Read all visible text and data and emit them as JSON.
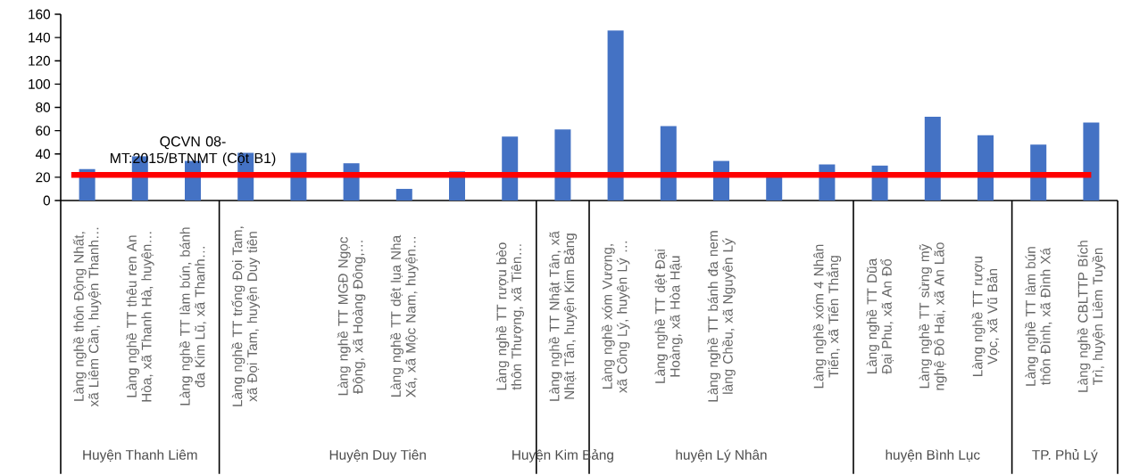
{
  "chart_data": {
    "type": "bar",
    "categories": [
      "Làng nghề thôn Động Nhất, xã Liêm Cần, huyện Thanh…",
      "Làng nghề TT thêu ren An Hòa, xã Thanh Hà, huyện…",
      "Làng nghề TT làm bún, bánh đa Kim Lũ, xã Thanh…",
      "Làng nghề TT trống Đọi Tam, xã Đọi Tam, huyện Duy tiên",
      null,
      "Làng nghề TT MGĐ Ngọc Động, xã Hoàng Đông,…",
      "Làng nghề TT dệt lụa Nha Xá, xã Mộc Nam, huyện…",
      null,
      "Làng nghề TT rượu bèo thôn Thượng, xã Tiên…",
      "Làng nghề TT Nhật Tân, xã Nhật Tân, huyện Kim Bảng",
      "Làng nghề xóm Vương, xã Công Lý, huyện Lý …",
      "Làng nghề TT dệt Đại Hoàng, xã Hòa Hậu",
      "Làng nghề TT bánh đa nem làng Chều, xã Nguyên Lý",
      null,
      "Làng nghề xóm 4 Nhân Tiến, xã Tiến Thắng",
      "Làng nghề TT Dũa Đại Phu, xã An Đổ",
      "Làng nghề TT sừng mỹ nghệ Đô Hai, xã An Lão",
      "Làng nghề TT rượu Vọc, xã Vũ Bản",
      "Làng nghề TT làm bún thôn Đình, xã Đình Xá",
      "Làng nghề CBLTTP Bích Trì, huyện Liêm Tuyền"
    ],
    "values": [
      27,
      38,
      34,
      41,
      41,
      32,
      10,
      25,
      55,
      61,
      146,
      64,
      34,
      21,
      31,
      30,
      72,
      56,
      48,
      67
    ],
    "color": "#4472c4",
    "ylim": [
      0,
      160
    ],
    "yticks": [
      0,
      20,
      40,
      60,
      80,
      100,
      120,
      140,
      160
    ],
    "grid": false,
    "ref_lines": [
      {
        "axis": "y",
        "value": 22,
        "color": "#ff0000"
      }
    ],
    "annotations": [
      "QCVN 08-MT:2015/BTNMT (Cột B1)",
      "Huyện Thanh Liêm",
      "Huyện Duy Tiên",
      "Huyện Kim Bảng",
      "huyện Lý Nhân",
      "huyện Bình Lục",
      "TP. Phủ Lý"
    ]
  }
}
